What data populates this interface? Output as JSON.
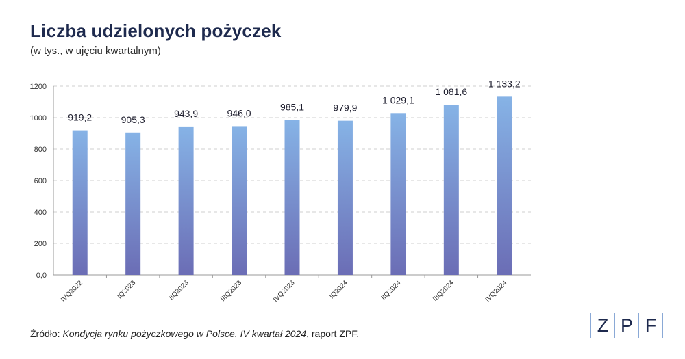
{
  "chart_data": {
    "type": "bar",
    "title": "Liczba udzielonych pożyczek",
    "subtitle": "(w tys., w ujęciu kwartalnym)",
    "categories": [
      "IVQ2022",
      "IQ2023",
      "IIQ2023",
      "IIIQ2023",
      "IVQ2023",
      "IQ2024",
      "IIQ2024",
      "IIIQ2024",
      "IVQ2024"
    ],
    "values": [
      919.2,
      905.3,
      943.9,
      946.0,
      985.1,
      979.9,
      1029.1,
      1081.6,
      1133.2
    ],
    "value_labels": [
      "919,2",
      "905,3",
      "943,9",
      "946,0",
      "985,1",
      "979,9",
      "1 029,1",
      "1 081,6",
      "1 133,2"
    ],
    "yticks": [
      0,
      200,
      400,
      600,
      800,
      1000,
      1200
    ],
    "ytick_labels": [
      "0,0",
      "200",
      "400",
      "600",
      "800",
      "1000",
      "1200"
    ],
    "ylim": [
      0,
      1200
    ],
    "grid": true,
    "colors": {
      "bar_top": "#86b3e6",
      "bar_bottom": "#6b6db5",
      "grid": "#cfcfcf",
      "title": "#1e2a4e"
    }
  },
  "source": {
    "prefix": "Źródło: ",
    "italic": "Kondycja rynku pożyczkowego w Polsce. IV kwartał 2024",
    "suffix": ", raport ZPF."
  },
  "logo": {
    "letters": [
      "Z",
      "P",
      "F"
    ]
  }
}
